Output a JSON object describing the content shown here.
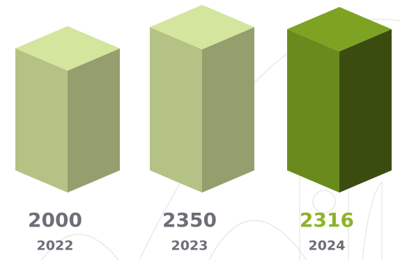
{
  "chart_data": {
    "type": "bar3d",
    "categories": [
      "2022",
      "2023",
      "2024"
    ],
    "values": [
      2000,
      2350,
      2316
    ],
    "colors": [
      "#b4c285",
      "#b4c285",
      "#6b8a1e"
    ],
    "value_label_colors": [
      "#6e6e78",
      "#6e6e78",
      "#8db32a"
    ]
  }
}
